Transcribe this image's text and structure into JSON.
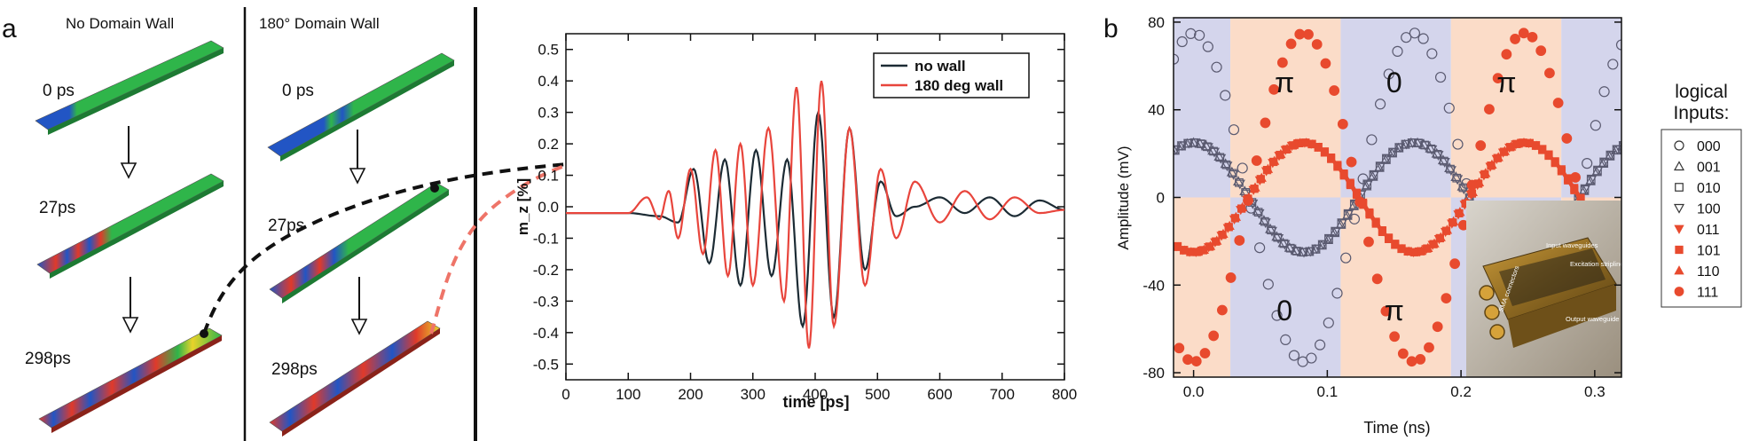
{
  "panel_a": {
    "label": "a",
    "col1_title": "No Domain Wall",
    "col2_title": "180° Domain Wall",
    "col1_times": [
      "0 ps",
      "27ps",
      "298ps"
    ],
    "col2_times": [
      "0 ps",
      "27ps",
      "298ps"
    ]
  },
  "panel_b": {
    "label": "b",
    "region_labels": [
      "π",
      "0",
      "π",
      "0",
      "π"
    ],
    "legend_title_line1": "logical",
    "legend_title_line2": "Inputs:",
    "inset_labels": [
      "Input waveguides",
      "Excitation striplines",
      "SMA connectors",
      "Output waveguide"
    ]
  },
  "colors": {
    "green": "#2fb54a",
    "blue": "#2255c4",
    "red": "#e03a2a",
    "black_series": "#1c2b34",
    "red_series": "#e8453c",
    "marker_red": "#e84a2e",
    "marker_grey": "#5a5a70",
    "band_blue": "#d4d5ec",
    "band_orange": "#fbdcc8"
  },
  "chart_data": [
    {
      "type": "line",
      "title": "",
      "xlabel": "time [ps]",
      "ylabel": "m_z [%]",
      "xlim": [
        0,
        800
      ],
      "ylim": [
        -0.55,
        0.55
      ],
      "xticks": [
        0,
        100,
        200,
        300,
        400,
        500,
        600,
        700,
        800
      ],
      "yticks": [
        0.5,
        0.4,
        0.3,
        0.2,
        0.1,
        0.0,
        -0.1,
        -0.2,
        -0.3,
        -0.4,
        -0.5
      ],
      "legend": "top-right",
      "grid": false,
      "series": [
        {
          "name": "no wall",
          "color": "#1c2b34",
          "x": [
            0,
            60,
            100,
            150,
            180,
            205,
            230,
            255,
            280,
            305,
            330,
            355,
            380,
            405,
            430,
            455,
            480,
            505,
            530,
            560,
            600,
            640,
            680,
            720,
            760,
            800
          ],
          "y": [
            -0.02,
            -0.02,
            -0.02,
            -0.03,
            -0.05,
            0.12,
            -0.18,
            0.15,
            -0.25,
            0.18,
            -0.22,
            0.15,
            -0.38,
            0.3,
            -0.35,
            0.25,
            -0.2,
            0.08,
            -0.03,
            0.0,
            0.03,
            -0.02,
            0.03,
            -0.03,
            0.02,
            -0.01
          ]
        },
        {
          "name": "180 deg wall",
          "color": "#e8453c",
          "x": [
            0,
            60,
            100,
            130,
            150,
            165,
            180,
            200,
            220,
            240,
            260,
            280,
            300,
            325,
            350,
            370,
            390,
            410,
            430,
            455,
            480,
            505,
            530,
            560,
            600,
            640,
            680,
            720,
            760,
            800
          ],
          "y": [
            -0.02,
            -0.02,
            -0.02,
            0.03,
            -0.04,
            0.05,
            -0.1,
            0.12,
            -0.15,
            0.18,
            -0.22,
            0.2,
            -0.25,
            0.25,
            -0.3,
            0.38,
            -0.45,
            0.4,
            -0.38,
            0.25,
            -0.25,
            0.12,
            -0.1,
            0.08,
            -0.05,
            0.05,
            -0.04,
            0.03,
            -0.02,
            -0.01
          ]
        }
      ]
    },
    {
      "type": "scatter",
      "title": "",
      "xlabel": "Time (ns)",
      "ylabel": "Amplitude (mV)",
      "xlim": [
        -0.015,
        0.32
      ],
      "ylim": [
        -82,
        82
      ],
      "xticks": [
        0.0,
        0.1,
        0.2,
        0.3
      ],
      "yticks": [
        80,
        40,
        0,
        -40,
        -80
      ],
      "legend": "right",
      "period_ns": 0.165,
      "series": [
        {
          "name": "000",
          "marker": "circle-open",
          "amplitude": 75,
          "phase": 0
        },
        {
          "name": "001",
          "marker": "triangle-up-open",
          "amplitude": 25,
          "phase": 0
        },
        {
          "name": "010",
          "marker": "square-open",
          "amplitude": 25,
          "phase": 0
        },
        {
          "name": "100",
          "marker": "triangle-down-open",
          "amplitude": 25,
          "phase": 0
        },
        {
          "name": "011",
          "marker": "triangle-down-filled",
          "amplitude": 25,
          "phase": 180
        },
        {
          "name": "101",
          "marker": "square-filled",
          "amplitude": 25,
          "phase": 180
        },
        {
          "name": "110",
          "marker": "triangle-up-filled",
          "amplitude": 25,
          "phase": 180
        },
        {
          "name": "111",
          "marker": "circle-filled",
          "amplitude": 75,
          "phase": 180
        }
      ]
    }
  ]
}
